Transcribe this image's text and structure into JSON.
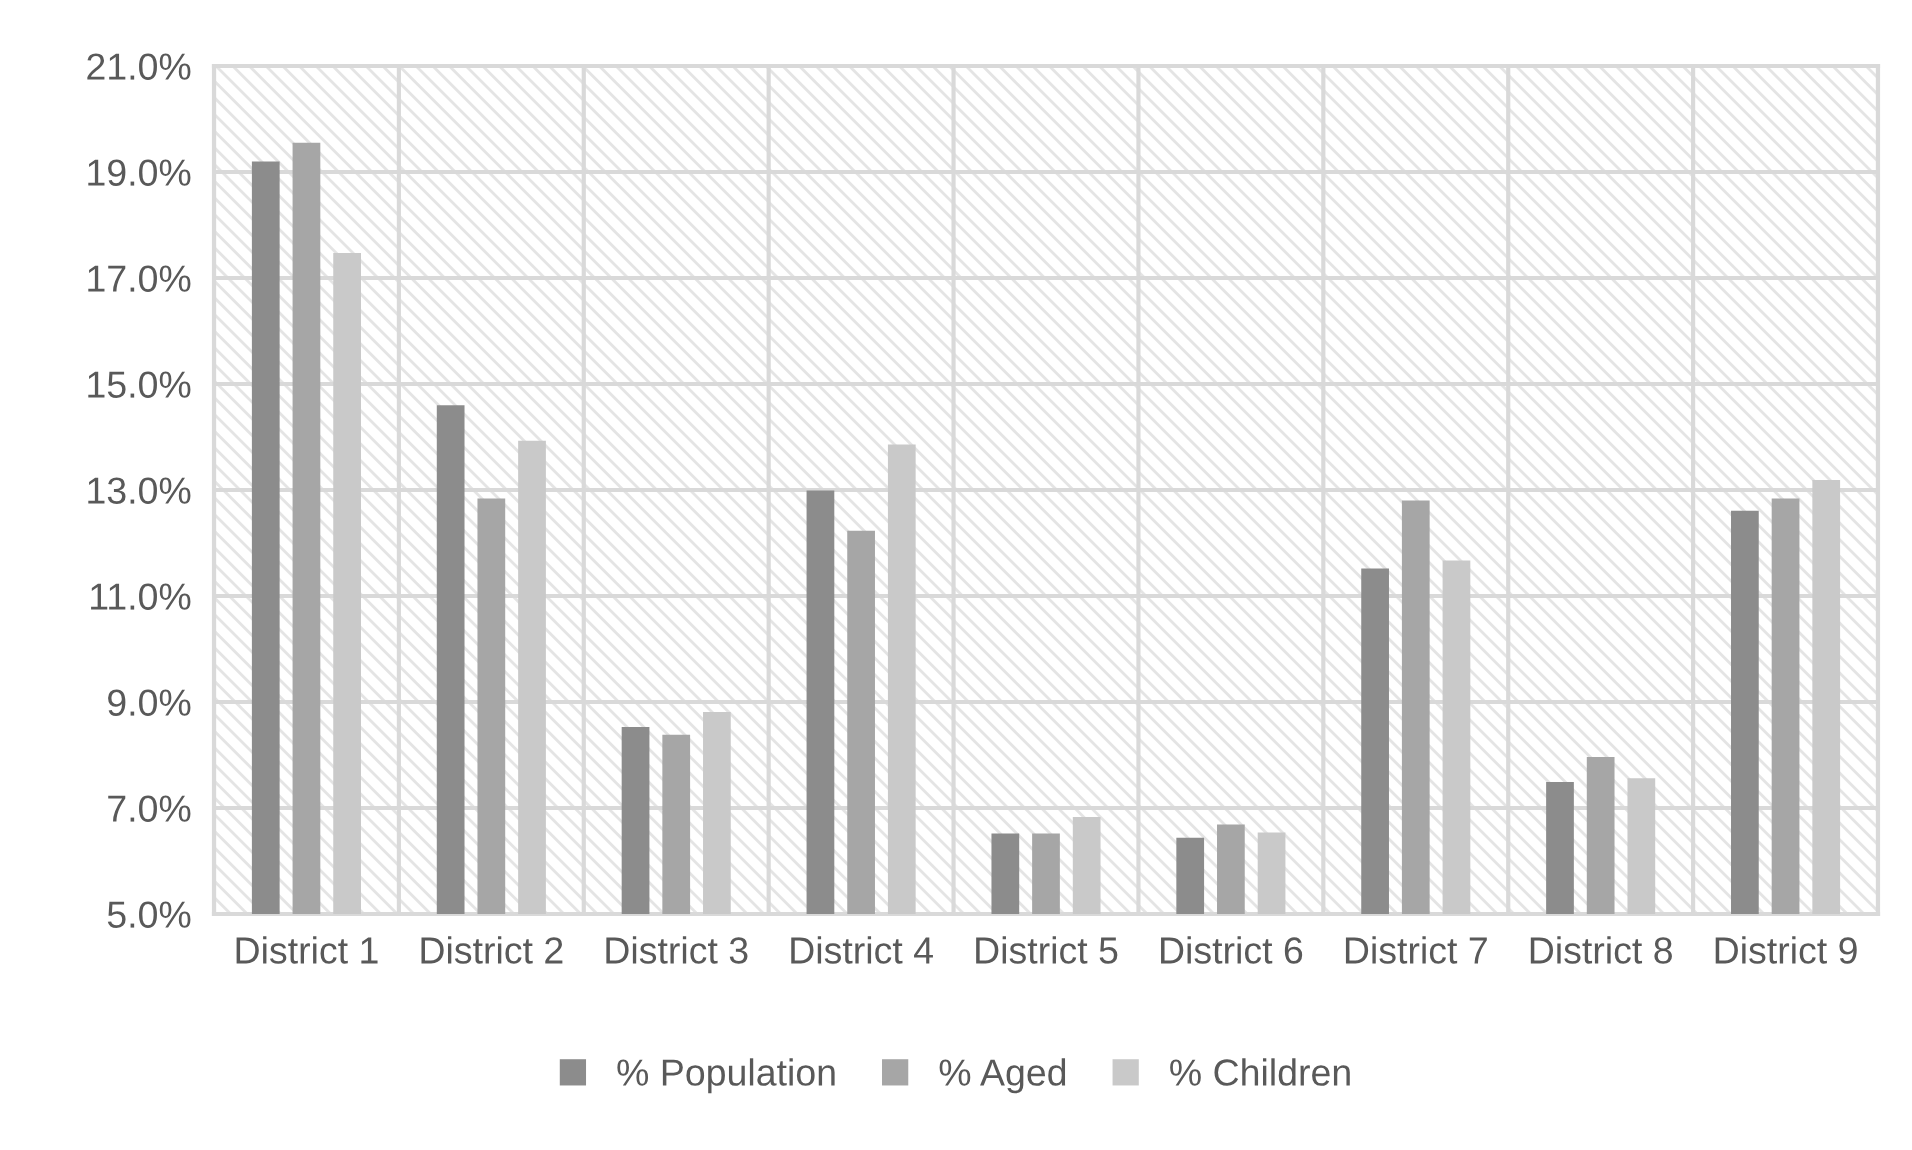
{
  "chart_data": {
    "type": "bar",
    "categories": [
      "District 1",
      "District 2",
      "District 3",
      "District 4",
      "District 5",
      "District 6",
      "District 7",
      "District 8",
      "District 9"
    ],
    "series": [
      {
        "name": "% Population",
        "color": "#8c8c8c",
        "values": [
          19.2,
          14.6,
          8.53,
          12.99,
          6.52,
          6.44,
          11.52,
          7.49,
          12.61
        ]
      },
      {
        "name": "% Aged",
        "color": "#a6a6a6",
        "values": [
          19.55,
          12.84,
          8.38,
          12.23,
          6.52,
          6.69,
          12.8,
          7.96,
          12.84
        ]
      },
      {
        "name": "% Children",
        "color": "#c9c9c9",
        "values": [
          17.47,
          13.93,
          8.81,
          13.86,
          6.83,
          6.54,
          11.67,
          7.56,
          13.19
        ]
      }
    ],
    "ylim": [
      5,
      21
    ],
    "yticks": [
      {
        "value": 5,
        "label": "5.0%"
      },
      {
        "value": 7,
        "label": "7.0%"
      },
      {
        "value": 9,
        "label": "9.0%"
      },
      {
        "value": 11,
        "label": "11.0%"
      },
      {
        "value": 13,
        "label": "13.0%"
      },
      {
        "value": 15,
        "label": "15.0%"
      },
      {
        "value": 17,
        "label": "17.0%"
      },
      {
        "value": 19,
        "label": "19.0%"
      },
      {
        "value": 21,
        "label": "21.0%"
      }
    ],
    "grid": true,
    "legend": "bottom"
  }
}
